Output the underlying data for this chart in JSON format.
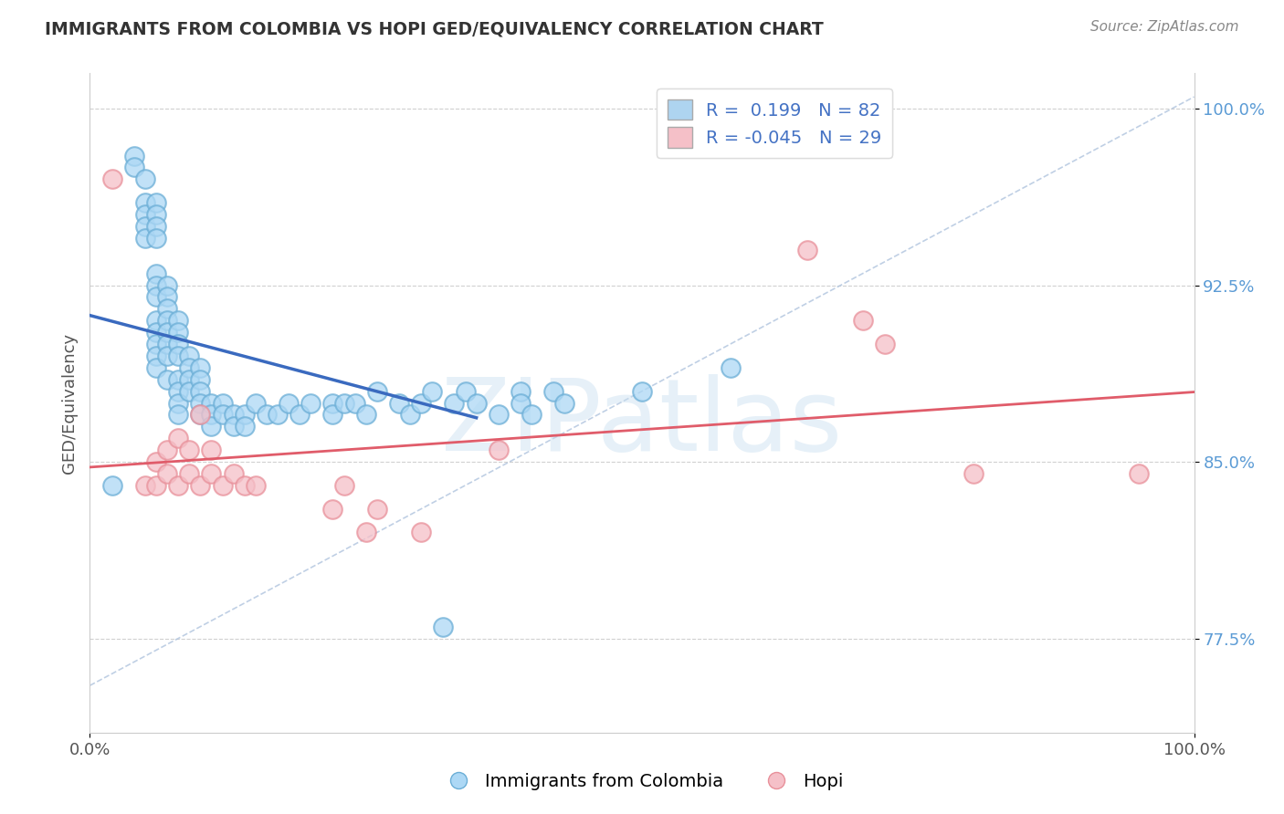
{
  "title": "IMMIGRANTS FROM COLOMBIA VS HOPI GED/EQUIVALENCY CORRELATION CHART",
  "source_text": "Source: ZipAtlas.com",
  "ylabel": "GED/Equivalency",
  "watermark": "ZIPatlas",
  "xlim": [
    0.0,
    1.0
  ],
  "ylim": [
    0.735,
    1.015
  ],
  "xticks": [
    0.0,
    1.0
  ],
  "xticklabels": [
    "0.0%",
    "100.0%"
  ],
  "yticks": [
    0.775,
    0.85,
    0.925,
    1.0
  ],
  "yticklabels": [
    "77.5%",
    "85.0%",
    "92.5%",
    "100.0%"
  ],
  "legend_labels": [
    "Immigrants from Colombia",
    "Hopi"
  ],
  "blue_r": "0.199",
  "blue_n": "82",
  "pink_r": "-0.045",
  "pink_n": "29",
  "blue_edge_color": "#6baed6",
  "pink_edge_color": "#e8909a",
  "blue_face_color": "#add8f5",
  "pink_face_color": "#f5c0c8",
  "blue_line_color": "#3a6abf",
  "pink_line_color": "#e05c6a",
  "background_color": "#ffffff",
  "grid_color": "#d0d0d0",
  "diag_line_color": "#b0c4de",
  "blue_scatter_x": [
    0.02,
    0.04,
    0.04,
    0.05,
    0.05,
    0.05,
    0.05,
    0.05,
    0.06,
    0.06,
    0.06,
    0.06,
    0.06,
    0.06,
    0.06,
    0.06,
    0.06,
    0.06,
    0.06,
    0.06,
    0.07,
    0.07,
    0.07,
    0.07,
    0.07,
    0.07,
    0.07,
    0.07,
    0.08,
    0.08,
    0.08,
    0.08,
    0.08,
    0.08,
    0.08,
    0.08,
    0.09,
    0.09,
    0.09,
    0.09,
    0.1,
    0.1,
    0.1,
    0.1,
    0.1,
    0.11,
    0.11,
    0.11,
    0.12,
    0.12,
    0.13,
    0.13,
    0.14,
    0.14,
    0.15,
    0.16,
    0.17,
    0.18,
    0.19,
    0.2,
    0.22,
    0.22,
    0.23,
    0.24,
    0.25,
    0.26,
    0.28,
    0.29,
    0.3,
    0.31,
    0.32,
    0.33,
    0.34,
    0.35,
    0.37,
    0.39,
    0.39,
    0.4,
    0.42,
    0.43,
    0.5,
    0.58
  ],
  "blue_scatter_y": [
    0.84,
    0.98,
    0.975,
    0.97,
    0.96,
    0.955,
    0.95,
    0.945,
    0.96,
    0.955,
    0.95,
    0.945,
    0.93,
    0.925,
    0.92,
    0.91,
    0.905,
    0.9,
    0.895,
    0.89,
    0.925,
    0.92,
    0.915,
    0.91,
    0.905,
    0.9,
    0.895,
    0.885,
    0.91,
    0.905,
    0.9,
    0.895,
    0.885,
    0.88,
    0.875,
    0.87,
    0.895,
    0.89,
    0.885,
    0.88,
    0.89,
    0.885,
    0.88,
    0.875,
    0.87,
    0.875,
    0.87,
    0.865,
    0.875,
    0.87,
    0.87,
    0.865,
    0.87,
    0.865,
    0.875,
    0.87,
    0.87,
    0.875,
    0.87,
    0.875,
    0.875,
    0.87,
    0.875,
    0.875,
    0.87,
    0.88,
    0.875,
    0.87,
    0.875,
    0.88,
    0.78,
    0.875,
    0.88,
    0.875,
    0.87,
    0.88,
    0.875,
    0.87,
    0.88,
    0.875,
    0.88,
    0.89
  ],
  "pink_scatter_x": [
    0.02,
    0.05,
    0.06,
    0.06,
    0.07,
    0.07,
    0.08,
    0.08,
    0.09,
    0.09,
    0.1,
    0.1,
    0.11,
    0.11,
    0.12,
    0.13,
    0.14,
    0.15,
    0.22,
    0.23,
    0.25,
    0.26,
    0.3,
    0.37,
    0.65,
    0.7,
    0.72,
    0.8,
    0.95
  ],
  "pink_scatter_y": [
    0.97,
    0.84,
    0.85,
    0.84,
    0.855,
    0.845,
    0.86,
    0.84,
    0.855,
    0.845,
    0.87,
    0.84,
    0.855,
    0.845,
    0.84,
    0.845,
    0.84,
    0.84,
    0.83,
    0.84,
    0.82,
    0.83,
    0.82,
    0.855,
    0.94,
    0.91,
    0.9,
    0.845,
    0.845
  ]
}
